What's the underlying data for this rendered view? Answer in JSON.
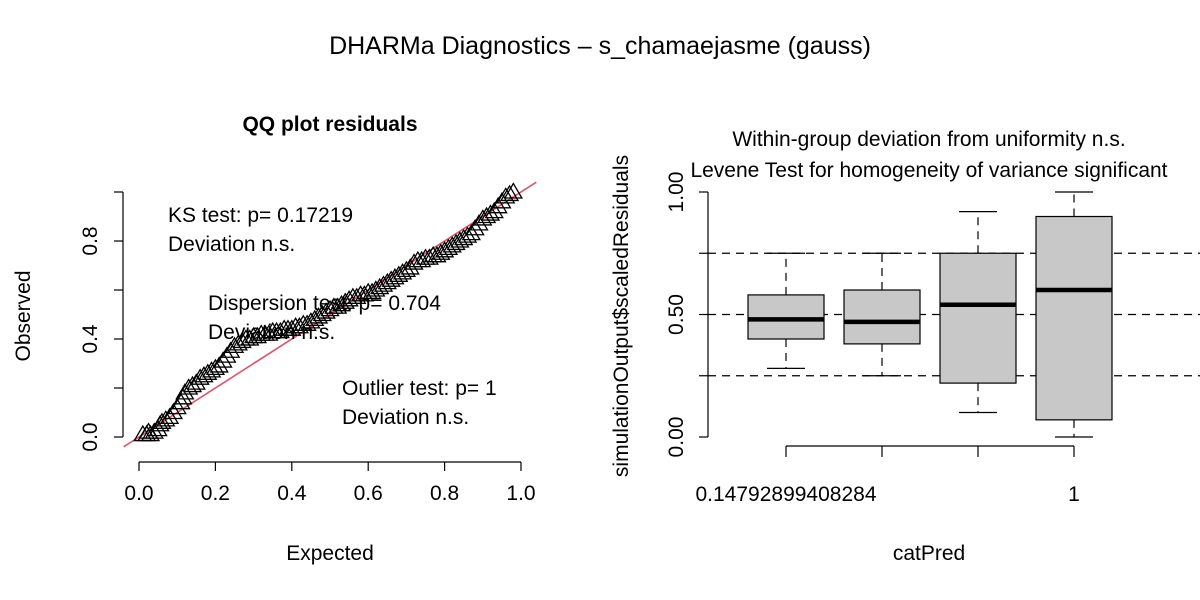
{
  "title": "DHARMa Diagnostics – s_chamaejasme (gauss)",
  "colors": {
    "reference_line": "#df536b",
    "box_fill": "#c8c8c8",
    "levene_text": "#ff0000",
    "ink": "#000000"
  },
  "chart_data": [
    {
      "type": "scatter",
      "title": "QQ plot residuals",
      "xlabel": "Expected",
      "ylabel": "Observed",
      "xlim": [
        0,
        1
      ],
      "ylim": [
        0,
        1
      ],
      "x_ticks": [
        "0.0",
        "0.2",
        "0.4",
        "0.6",
        "0.8",
        "1.0"
      ],
      "y_ticks": [
        "0.0",
        "0.4",
        "0.8"
      ],
      "marker": "triangle",
      "reference_line": {
        "intercept": 0,
        "slope": 1
      },
      "annotations": [
        {
          "lines": [
            "KS test: p= 0.17219",
            "Deviation  n.s."
          ]
        },
        {
          "lines": [
            "Dispersion test: p= 0.704",
            "Deviation  n.s."
          ]
        },
        {
          "lines": [
            "Outlier test: p= 1",
            "Deviation  n.s."
          ]
        }
      ],
      "points": [
        [
          0.01,
          0.01
        ],
        [
          0.02,
          0.01
        ],
        [
          0.025,
          0.02
        ],
        [
          0.03,
          0.01
        ],
        [
          0.04,
          0.02
        ],
        [
          0.05,
          0.03
        ],
        [
          0.055,
          0.05
        ],
        [
          0.06,
          0.06
        ],
        [
          0.07,
          0.07
        ],
        [
          0.08,
          0.08
        ],
        [
          0.09,
          0.1
        ],
        [
          0.1,
          0.12
        ],
        [
          0.11,
          0.14
        ],
        [
          0.115,
          0.16
        ],
        [
          0.12,
          0.18
        ],
        [
          0.13,
          0.2
        ],
        [
          0.14,
          0.21
        ],
        [
          0.15,
          0.22
        ],
        [
          0.16,
          0.24
        ],
        [
          0.17,
          0.25
        ],
        [
          0.18,
          0.26
        ],
        [
          0.19,
          0.27
        ],
        [
          0.2,
          0.28
        ],
        [
          0.21,
          0.29
        ],
        [
          0.22,
          0.31
        ],
        [
          0.23,
          0.33
        ],
        [
          0.24,
          0.35
        ],
        [
          0.25,
          0.37
        ],
        [
          0.26,
          0.38
        ],
        [
          0.27,
          0.39
        ],
        [
          0.28,
          0.4
        ],
        [
          0.29,
          0.4
        ],
        [
          0.3,
          0.41
        ],
        [
          0.31,
          0.41
        ],
        [
          0.32,
          0.42
        ],
        [
          0.33,
          0.42
        ],
        [
          0.34,
          0.42
        ],
        [
          0.35,
          0.43
        ],
        [
          0.36,
          0.43
        ],
        [
          0.37,
          0.43
        ],
        [
          0.38,
          0.44
        ],
        [
          0.39,
          0.44
        ],
        [
          0.4,
          0.44
        ],
        [
          0.41,
          0.45
        ],
        [
          0.42,
          0.45
        ],
        [
          0.43,
          0.46
        ],
        [
          0.44,
          0.46
        ],
        [
          0.45,
          0.47
        ],
        [
          0.46,
          0.48
        ],
        [
          0.47,
          0.49
        ],
        [
          0.48,
          0.5
        ],
        [
          0.49,
          0.51
        ],
        [
          0.5,
          0.52
        ],
        [
          0.51,
          0.53
        ],
        [
          0.52,
          0.53
        ],
        [
          0.53,
          0.54
        ],
        [
          0.54,
          0.55
        ],
        [
          0.55,
          0.56
        ],
        [
          0.56,
          0.57
        ],
        [
          0.57,
          0.57
        ],
        [
          0.58,
          0.58
        ],
        [
          0.59,
          0.58
        ],
        [
          0.6,
          0.59
        ],
        [
          0.61,
          0.59
        ],
        [
          0.62,
          0.6
        ],
        [
          0.63,
          0.61
        ],
        [
          0.64,
          0.62
        ],
        [
          0.65,
          0.63
        ],
        [
          0.66,
          0.64
        ],
        [
          0.67,
          0.65
        ],
        [
          0.68,
          0.66
        ],
        [
          0.69,
          0.67
        ],
        [
          0.7,
          0.68
        ],
        [
          0.71,
          0.69
        ],
        [
          0.72,
          0.71
        ],
        [
          0.73,
          0.72
        ],
        [
          0.74,
          0.72
        ],
        [
          0.75,
          0.73
        ],
        [
          0.76,
          0.73
        ],
        [
          0.77,
          0.74
        ],
        [
          0.78,
          0.74
        ],
        [
          0.79,
          0.75
        ],
        [
          0.8,
          0.76
        ],
        [
          0.81,
          0.77
        ],
        [
          0.82,
          0.78
        ],
        [
          0.83,
          0.79
        ],
        [
          0.84,
          0.8
        ],
        [
          0.85,
          0.81
        ],
        [
          0.86,
          0.82
        ],
        [
          0.87,
          0.83
        ],
        [
          0.88,
          0.85
        ],
        [
          0.89,
          0.87
        ],
        [
          0.9,
          0.89
        ],
        [
          0.91,
          0.9
        ],
        [
          0.92,
          0.91
        ],
        [
          0.93,
          0.92
        ],
        [
          0.94,
          0.94
        ],
        [
          0.95,
          0.96
        ],
        [
          0.96,
          0.98
        ],
        [
          0.97,
          0.99
        ],
        [
          0.98,
          1.0
        ]
      ]
    },
    {
      "type": "box",
      "title_lines": [
        {
          "text": "Within-group deviation from uniformity n.s.",
          "color": "#000000"
        },
        {
          "text": "Levene Test for homogeneity of variance significant",
          "color": "#ff0000"
        }
      ],
      "xlabel": "catPred",
      "ylabel": "simulationOutput$scaledResiduals",
      "ylim": [
        0,
        1
      ],
      "y_ticks": [
        "0.00",
        "0.50",
        "1.00"
      ],
      "x_tick_labels": [
        "0.14792899408284",
        "",
        "",
        "1"
      ],
      "reference_lines": [
        0.25,
        0.5,
        0.75
      ],
      "boxes": [
        {
          "lower_whisker": 0.28,
          "q1": 0.4,
          "median": 0.48,
          "q3": 0.58,
          "upper_whisker": 0.75
        },
        {
          "lower_whisker": 0.25,
          "q1": 0.38,
          "median": 0.47,
          "q3": 0.6,
          "upper_whisker": 0.75
        },
        {
          "lower_whisker": 0.1,
          "q1": 0.22,
          "median": 0.54,
          "q3": 0.75,
          "upper_whisker": 0.92
        },
        {
          "lower_whisker": 0.0,
          "q1": 0.07,
          "median": 0.6,
          "q3": 0.9,
          "upper_whisker": 1.0
        }
      ]
    }
  ]
}
